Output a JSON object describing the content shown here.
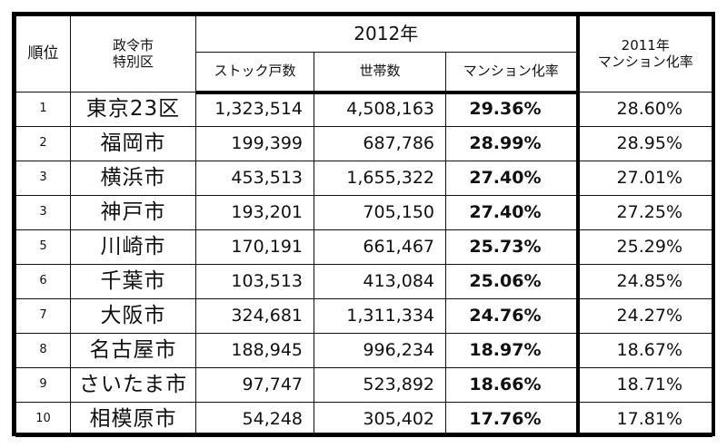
{
  "header": {
    "rank": "順位",
    "city_line1": "政令市",
    "city_line2": "特別区",
    "year_2012": "2012年",
    "stock": "ストック戸数",
    "households": "世帯数",
    "rate_2012": "マンション化率",
    "rate_2011_line1": "2011年",
    "rate_2011_line2": "マンション化率"
  },
  "rows": [
    {
      "rank": "1",
      "city": "東京23区",
      "stock": "1,323,514",
      "households": "4,508,163",
      "rate_2012": "29.36%",
      "rate_2011": "28.60%"
    },
    {
      "rank": "2",
      "city": "福岡市",
      "stock": "199,399",
      "households": "687,786",
      "rate_2012": "28.99%",
      "rate_2011": "28.95%"
    },
    {
      "rank": "3",
      "city": "横浜市",
      "stock": "453,513",
      "households": "1,655,322",
      "rate_2012": "27.40%",
      "rate_2011": "27.01%"
    },
    {
      "rank": "3",
      "city": "神戸市",
      "stock": "193,201",
      "households": "705,150",
      "rate_2012": "27.40%",
      "rate_2011": "27.25%"
    },
    {
      "rank": "5",
      "city": "川崎市",
      "stock": "170,191",
      "households": "661,467",
      "rate_2012": "25.73%",
      "rate_2011": "25.29%"
    },
    {
      "rank": "6",
      "city": "千葉市",
      "stock": "103,513",
      "households": "413,084",
      "rate_2012": "25.06%",
      "rate_2011": "24.85%"
    },
    {
      "rank": "7",
      "city": "大阪市",
      "stock": "324,681",
      "households": "1,311,334",
      "rate_2012": "24.76%",
      "rate_2011": "24.27%"
    },
    {
      "rank": "8",
      "city": "名古屋市",
      "stock": "188,945",
      "households": "996,234",
      "rate_2012": "18.97%",
      "rate_2011": "18.67%"
    },
    {
      "rank": "9",
      "city": "さいたま市",
      "stock": "97,747",
      "households": "523,892",
      "rate_2012": "18.66%",
      "rate_2011": "18.71%"
    },
    {
      "rank": "10",
      "city": "相模原市",
      "stock": "54,248",
      "households": "305,402",
      "rate_2012": "17.76%",
      "rate_2011": "17.81%"
    }
  ]
}
